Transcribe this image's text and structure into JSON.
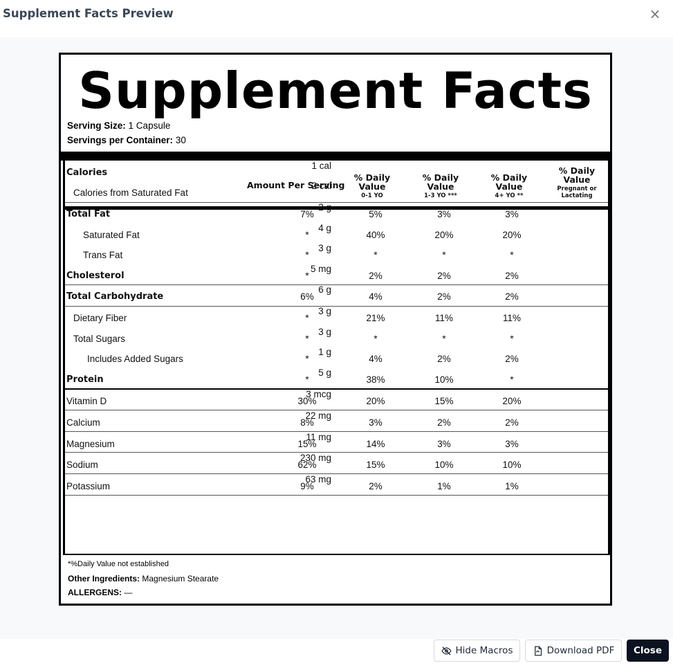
{
  "dialog": {
    "title": "Supplement Facts Preview",
    "close_icon": "×"
  },
  "label": {
    "title": "Supplement Facts",
    "serving_size_label": "Serving Size:",
    "serving_size_value": "1 Capsule",
    "servings_label": "Servings per Container:",
    "servings_value": "30",
    "amount_header": "Amount Per Serving",
    "dv_headers": [
      {
        "title": "% Daily Value",
        "sub": "0-1 YO"
      },
      {
        "title": "% Daily Value",
        "sub": "1-3 YO ***"
      },
      {
        "title": "% Daily Value",
        "sub": "4+ YO **"
      },
      {
        "title": "% Daily Value",
        "sub": "Pregnant or Lactating"
      }
    ],
    "rows": [
      {
        "name": "Calories",
        "amount": "1 cal",
        "bold": true,
        "indent": 0,
        "dv": [
          "",
          "",
          "",
          ""
        ]
      },
      {
        "name": "Calories from Saturated Fat",
        "amount": "2 cal",
        "bold": false,
        "indent": 1,
        "dv": [
          "",
          "",
          "",
          ""
        ]
      },
      {
        "name": "Total Fat",
        "amount": "2 g",
        "bold": true,
        "indent": 0,
        "dv": [
          "7%",
          "5%",
          "3%",
          "3%"
        ]
      },
      {
        "name": "Saturated Fat",
        "amount": "4 g",
        "bold": false,
        "indent": 2,
        "dv": [
          "*",
          "40%",
          "20%",
          "20%"
        ]
      },
      {
        "name": "Trans Fat",
        "amount": "3 g",
        "bold": false,
        "indent": 2,
        "dv": [
          "*",
          "*",
          "*",
          "*"
        ]
      },
      {
        "name": "Cholesterol",
        "amount": "5 mg",
        "bold": true,
        "indent": 0,
        "dv": [
          "*",
          "2%",
          "2%",
          "2%"
        ]
      },
      {
        "name": "Total Carbohydrate",
        "amount": "6 g",
        "bold": true,
        "indent": 0,
        "dv": [
          "6%",
          "4%",
          "2%",
          "2%"
        ]
      },
      {
        "name": "Dietary Fiber",
        "amount": "3 g",
        "bold": false,
        "indent": 1,
        "dv": [
          "*",
          "21%",
          "11%",
          "11%"
        ]
      },
      {
        "name": "Total Sugars",
        "amount": "3 g",
        "bold": false,
        "indent": 1,
        "dv": [
          "*",
          "*",
          "*",
          "*"
        ]
      },
      {
        "name": "Includes Added Sugars",
        "amount": "1 g",
        "bold": false,
        "indent": 3,
        "dv": [
          "*",
          "4%",
          "2%",
          "2%"
        ]
      },
      {
        "name": "Protein",
        "amount": "5 g",
        "bold": true,
        "indent": 0,
        "dv": [
          "*",
          "38%",
          "10%",
          "*"
        ]
      },
      {
        "name": "Vitamin D",
        "amount": "3 mcg",
        "bold": false,
        "indent": 0,
        "dv": [
          "30%",
          "20%",
          "15%",
          "20%"
        ]
      },
      {
        "name": "Calcium",
        "amount": "22 mg",
        "bold": false,
        "indent": 0,
        "dv": [
          "8%",
          "3%",
          "2%",
          "2%"
        ]
      },
      {
        "name": "Magnesium",
        "amount": "11 mg",
        "bold": false,
        "indent": 0,
        "dv": [
          "15%",
          "14%",
          "3%",
          "3%"
        ]
      },
      {
        "name": "Sodium",
        "amount": "230 mg",
        "bold": false,
        "indent": 0,
        "dv": [
          "62%",
          "15%",
          "10%",
          "10%"
        ]
      },
      {
        "name": "Potassium",
        "amount": "63 mg",
        "bold": false,
        "indent": 0,
        "dv": [
          "9%",
          "2%",
          "1%",
          "1%"
        ]
      }
    ],
    "footnote": "*%Daily Value not established",
    "ingredients_label": "Other Ingredients:",
    "ingredients_value": "Magnesium Stearate",
    "allergens_label": "ALLERGENS:",
    "allergens_value": "—"
  },
  "buttons": {
    "hide_macros": "Hide Macros",
    "download_pdf": "Download PDF",
    "close": "Close"
  }
}
